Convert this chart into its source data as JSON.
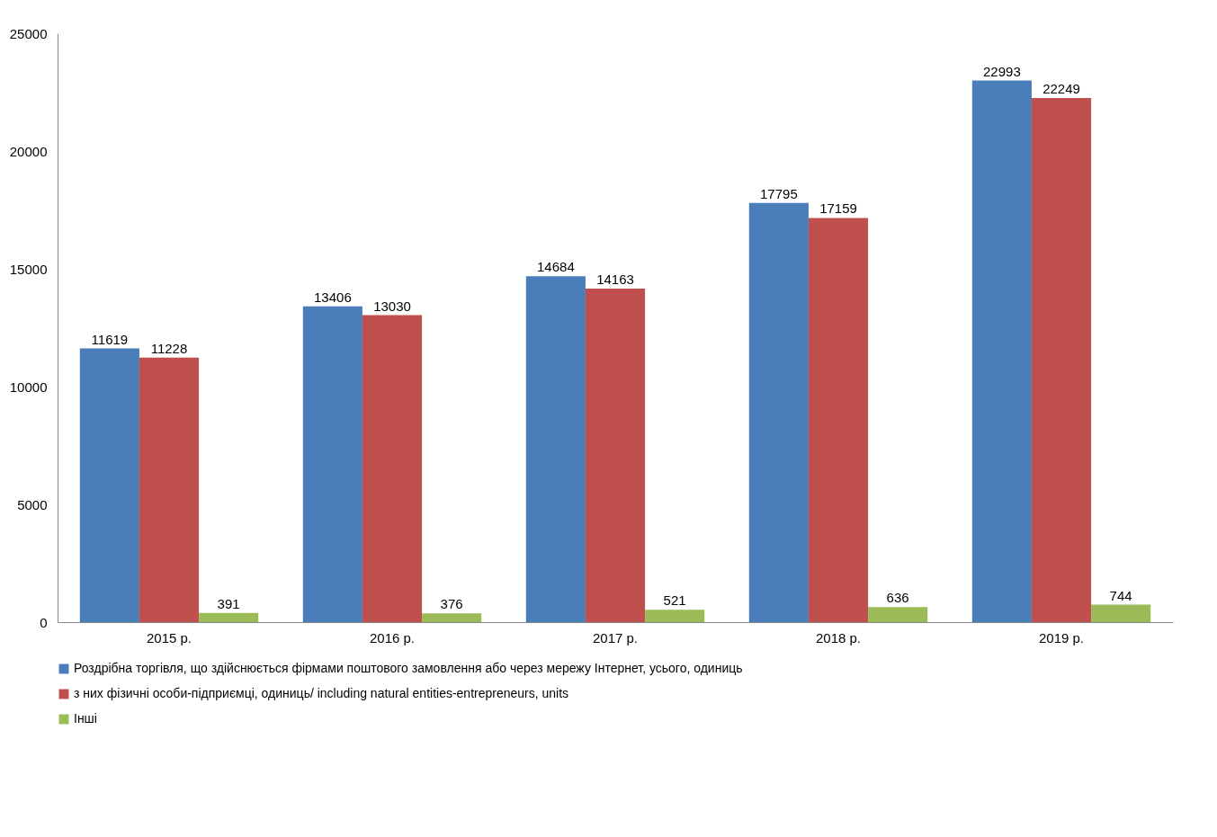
{
  "chart_data": {
    "type": "bar",
    "categories": [
      "2015 р.",
      "2016 р.",
      "2017 р.",
      "2018 р.",
      "2019 р."
    ],
    "series": [
      {
        "name": "Роздрібна торгівля, що здійснюється фірмами поштового замовлення або через мережу Інтернет, усього, одиниць",
        "color": "#4a7ebb",
        "values": [
          11619,
          13406,
          14684,
          17795,
          22993
        ]
      },
      {
        "name": "з них фізичні особи-підприємці, одиниць/ including natural entities-entrepreneurs, units",
        "color": "#c0504d",
        "values": [
          11228,
          13030,
          14163,
          17159,
          22249
        ]
      },
      {
        "name": "Інші",
        "color": "#9bbb59",
        "values": [
          391,
          376,
          521,
          636,
          744
        ]
      }
    ],
    "ylim": [
      0,
      25000
    ],
    "yticks": [
      0,
      5000,
      10000,
      15000,
      20000,
      25000
    ],
    "grid": false,
    "legend": "bottom",
    "data_labels": true
  }
}
